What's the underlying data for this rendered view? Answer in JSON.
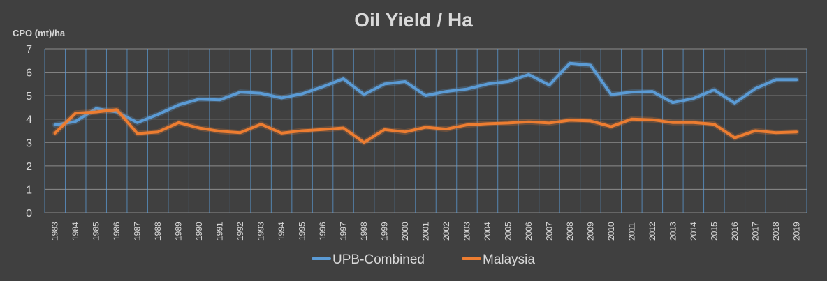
{
  "chart_data": {
    "type": "line",
    "title": "Oil Yield / Ha",
    "ylabel": "CPO (mt)/ha",
    "xlabel": "",
    "ylim": [
      0,
      7
    ],
    "yticks": [
      0,
      1,
      2,
      3,
      4,
      5,
      6,
      7
    ],
    "grid": "vertical-and-horizontal",
    "legend": "bottom-center",
    "categories": [
      "1983",
      "1984",
      "1985",
      "1986",
      "1987",
      "1988",
      "1989",
      "1990",
      "1991",
      "1992",
      "1993",
      "1994",
      "1995",
      "1996",
      "1997",
      "1998",
      "1999",
      "2000",
      "2001",
      "2002",
      "2003",
      "2004",
      "2005",
      "2006",
      "2007",
      "2008",
      "2009",
      "2010",
      "2011",
      "2012",
      "2013",
      "2014",
      "2015",
      "2016",
      "2017",
      "2018",
      "2019"
    ],
    "series": [
      {
        "name": "UPB-Combined",
        "color": "#5b9bd5",
        "values": [
          3.75,
          3.9,
          4.45,
          4.3,
          3.85,
          4.2,
          4.6,
          4.85,
          4.82,
          5.15,
          5.1,
          4.9,
          5.08,
          5.38,
          5.72,
          5.05,
          5.5,
          5.6,
          5.0,
          5.18,
          5.28,
          5.5,
          5.6,
          5.9,
          5.45,
          6.38,
          6.3,
          5.05,
          5.15,
          5.18,
          4.7,
          4.88,
          5.25,
          4.68,
          5.3,
          5.68,
          5.68
        ]
      },
      {
        "name": "Malaysia",
        "color": "#ed7d31",
        "values": [
          3.4,
          4.25,
          4.3,
          4.4,
          3.38,
          3.45,
          3.85,
          3.62,
          3.48,
          3.42,
          3.78,
          3.4,
          3.5,
          3.55,
          3.62,
          3.0,
          3.55,
          3.45,
          3.65,
          3.57,
          3.75,
          3.8,
          3.83,
          3.88,
          3.83,
          3.95,
          3.92,
          3.68,
          4.0,
          3.97,
          3.85,
          3.85,
          3.78,
          3.2,
          3.5,
          3.42,
          3.45
        ]
      }
    ]
  }
}
